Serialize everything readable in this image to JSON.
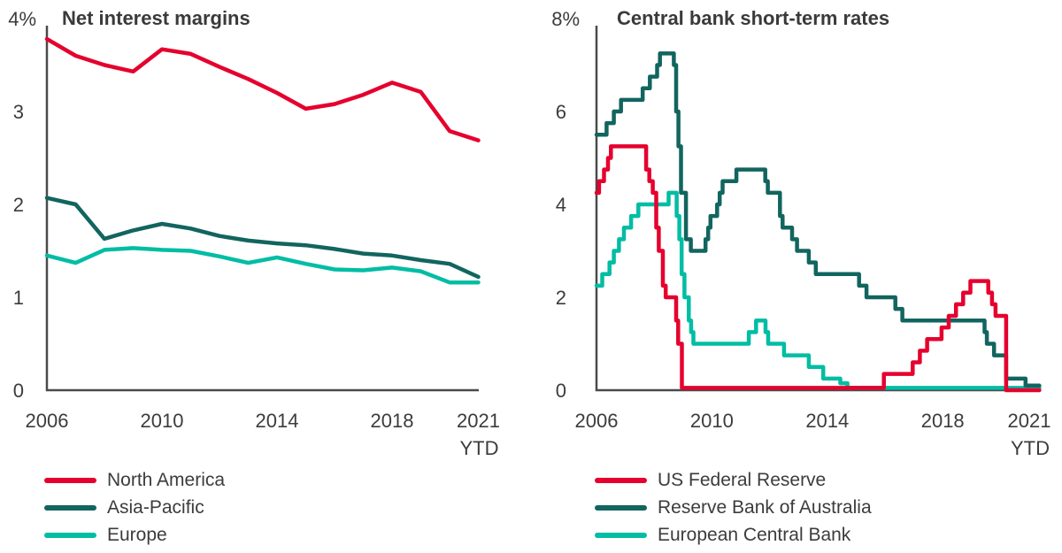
{
  "page": {
    "background": "#ffffff",
    "text_color": "#3c3c3c",
    "axis_color": "#4a4a4a"
  },
  "colors": {
    "red": "#e5002e",
    "dark_teal": "#12655f",
    "light_teal": "#00bda4"
  },
  "chart_data": [
    {
      "type": "line",
      "title": "Net interest margins",
      "x_start_year": 2006,
      "x_tick_years": [
        2006,
        2010,
        2014,
        2018,
        2021
      ],
      "x_tick_labels": [
        "2006",
        "2010",
        "2014",
        "2018",
        "2021"
      ],
      "x_note": "YTD",
      "ylim": [
        0,
        4
      ],
      "y_ticks": [
        {
          "v": 4,
          "label": "4%"
        },
        {
          "v": 3,
          "label": "3"
        },
        {
          "v": 2,
          "label": "2"
        },
        {
          "v": 1,
          "label": "1"
        },
        {
          "v": 0,
          "label": "0"
        }
      ],
      "series": [
        {
          "name": "North America",
          "color": "#e5002e",
          "values": [
            3.78,
            3.6,
            3.5,
            3.43,
            3.67,
            3.62,
            3.48,
            3.35,
            3.2,
            3.03,
            3.08,
            3.18,
            3.31,
            3.21,
            2.79,
            2.69
          ]
        },
        {
          "name": "Asia-Pacific",
          "color": "#12655f",
          "values": [
            2.07,
            2.0,
            1.63,
            1.72,
            1.79,
            1.74,
            1.66,
            1.61,
            1.58,
            1.56,
            1.52,
            1.47,
            1.45,
            1.4,
            1.36,
            1.22
          ]
        },
        {
          "name": "Europe",
          "color": "#00bda4",
          "values": [
            1.45,
            1.37,
            1.51,
            1.53,
            1.51,
            1.5,
            1.44,
            1.37,
            1.43,
            1.36,
            1.3,
            1.29,
            1.32,
            1.28,
            1.16,
            1.16
          ]
        }
      ]
    },
    {
      "type": "step",
      "title": "Central bank short-term rates",
      "x_tick_years": [
        2006,
        2010,
        2014,
        2018,
        2021
      ],
      "x_tick_labels": [
        "2006",
        "2010",
        "2014",
        "2018",
        "2021"
      ],
      "x_note": "YTD",
      "x_end": 2021.35,
      "ylim": [
        0,
        8
      ],
      "y_ticks": [
        {
          "v": 8,
          "label": "8%"
        },
        {
          "v": 6,
          "label": "6"
        },
        {
          "v": 4,
          "label": "4"
        },
        {
          "v": 2,
          "label": "2"
        },
        {
          "v": 0,
          "label": "0"
        }
      ],
      "series": [
        {
          "name": "US Federal Reserve",
          "color": "#e5002e",
          "steps": [
            [
              2006.0,
              4.25
            ],
            [
              2006.09,
              4.5
            ],
            [
              2006.26,
              4.75
            ],
            [
              2006.4,
              5.0
            ],
            [
              2006.5,
              5.25
            ],
            [
              2007.72,
              4.75
            ],
            [
              2007.83,
              4.5
            ],
            [
              2007.95,
              4.25
            ],
            [
              2008.07,
              3.5
            ],
            [
              2008.16,
              3.0
            ],
            [
              2008.3,
              2.25
            ],
            [
              2008.4,
              2.0
            ],
            [
              2008.76,
              1.5
            ],
            [
              2008.83,
              1.0
            ],
            [
              2008.96,
              0.05
            ],
            [
              2015.96,
              0.35
            ],
            [
              2016.96,
              0.6
            ],
            [
              2017.21,
              0.85
            ],
            [
              2017.46,
              1.1
            ],
            [
              2017.96,
              1.35
            ],
            [
              2018.21,
              1.6
            ],
            [
              2018.46,
              1.85
            ],
            [
              2018.71,
              2.1
            ],
            [
              2018.96,
              2.35
            ],
            [
              2019.58,
              2.1
            ],
            [
              2019.71,
              1.85
            ],
            [
              2019.83,
              1.6
            ],
            [
              2020.2,
              0.0
            ]
          ]
        },
        {
          "name": "Reserve Bank of Australia",
          "color": "#12655f",
          "steps": [
            [
              2006.0,
              5.5
            ],
            [
              2006.35,
              5.75
            ],
            [
              2006.6,
              6.0
            ],
            [
              2006.85,
              6.25
            ],
            [
              2007.6,
              6.5
            ],
            [
              2007.85,
              6.75
            ],
            [
              2008.1,
              7.0
            ],
            [
              2008.2,
              7.25
            ],
            [
              2008.68,
              7.0
            ],
            [
              2008.76,
              6.0
            ],
            [
              2008.84,
              5.25
            ],
            [
              2008.93,
              4.25
            ],
            [
              2009.1,
              3.25
            ],
            [
              2009.27,
              3.0
            ],
            [
              2009.78,
              3.25
            ],
            [
              2009.87,
              3.5
            ],
            [
              2009.95,
              3.75
            ],
            [
              2010.18,
              4.0
            ],
            [
              2010.27,
              4.25
            ],
            [
              2010.37,
              4.5
            ],
            [
              2010.85,
              4.75
            ],
            [
              2011.85,
              4.5
            ],
            [
              2011.94,
              4.25
            ],
            [
              2012.36,
              3.75
            ],
            [
              2012.45,
              3.5
            ],
            [
              2012.78,
              3.25
            ],
            [
              2012.95,
              3.0
            ],
            [
              2013.36,
              2.75
            ],
            [
              2013.6,
              2.5
            ],
            [
              2015.1,
              2.25
            ],
            [
              2015.36,
              2.0
            ],
            [
              2016.36,
              1.75
            ],
            [
              2016.6,
              1.5
            ],
            [
              2019.45,
              1.25
            ],
            [
              2019.53,
              1.0
            ],
            [
              2019.78,
              0.75
            ],
            [
              2020.2,
              0.25
            ],
            [
              2020.87,
              0.1
            ]
          ]
        },
        {
          "name": "European Central Bank",
          "color": "#00bda4",
          "steps": [
            [
              2006.0,
              2.25
            ],
            [
              2006.2,
              2.5
            ],
            [
              2006.45,
              2.75
            ],
            [
              2006.6,
              3.0
            ],
            [
              2006.78,
              3.25
            ],
            [
              2006.95,
              3.5
            ],
            [
              2007.2,
              3.75
            ],
            [
              2007.45,
              4.0
            ],
            [
              2008.5,
              4.25
            ],
            [
              2008.78,
              3.75
            ],
            [
              2008.87,
              3.25
            ],
            [
              2008.95,
              2.5
            ],
            [
              2009.05,
              2.0
            ],
            [
              2009.2,
              1.5
            ],
            [
              2009.28,
              1.25
            ],
            [
              2009.36,
              1.0
            ],
            [
              2011.28,
              1.25
            ],
            [
              2011.53,
              1.5
            ],
            [
              2011.86,
              1.25
            ],
            [
              2011.95,
              1.0
            ],
            [
              2012.5,
              0.75
            ],
            [
              2013.36,
              0.5
            ],
            [
              2013.86,
              0.25
            ],
            [
              2014.45,
              0.15
            ],
            [
              2014.7,
              0.05
            ]
          ]
        }
      ]
    }
  ]
}
